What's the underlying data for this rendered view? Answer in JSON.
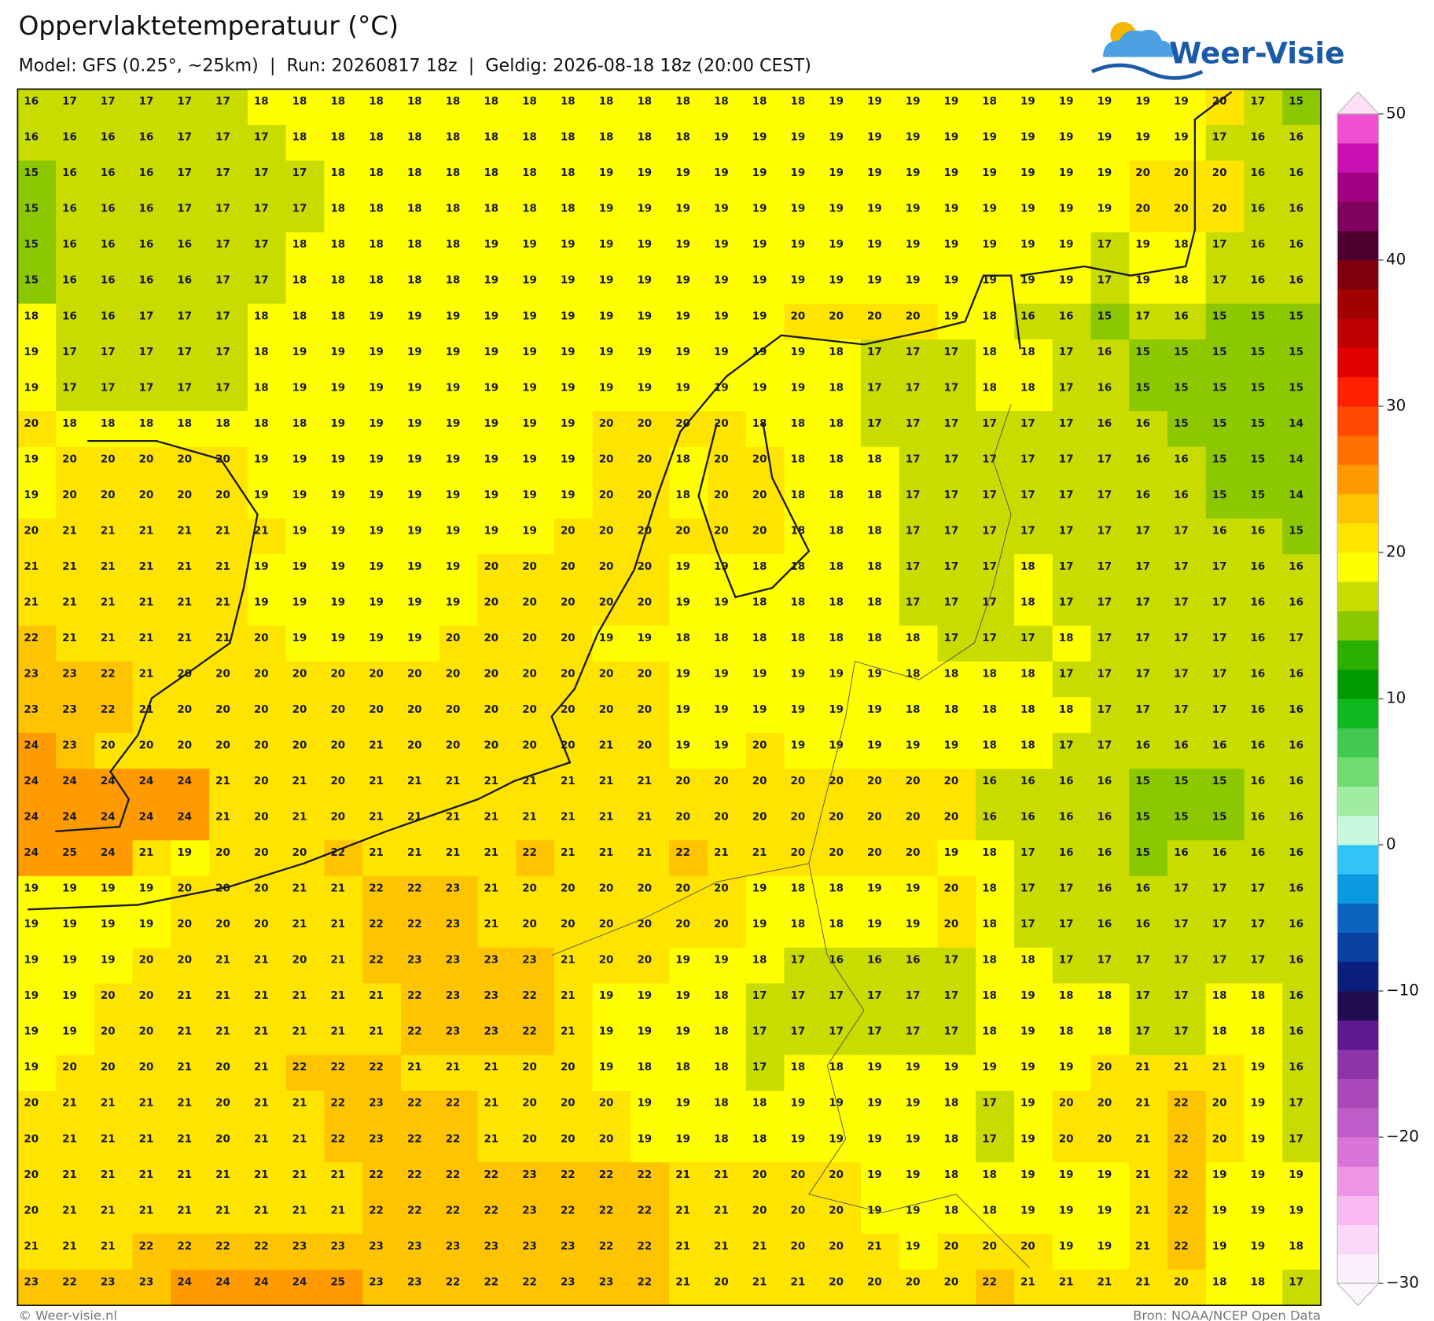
{
  "header": {
    "title": "Oppervlaktetemperatuur (°C)",
    "subtitle": "Model: GFS (0.25°, ~25km)  |  Run: 20260817 18z  |  Geldig: 2026-08-18 18z (20:00 CEST)",
    "logo": "Weer-Visie"
  },
  "map": {
    "type": "grid",
    "values": [
      [
        16,
        17,
        17,
        17,
        17,
        17,
        18,
        18,
        18,
        18,
        18,
        18,
        18,
        18,
        18,
        18,
        18,
        18,
        18,
        18,
        18,
        19,
        19,
        19,
        19,
        18,
        19,
        19,
        19,
        19,
        19,
        20,
        17,
        15
      ],
      [
        16,
        16,
        16,
        16,
        17,
        17,
        17,
        18,
        18,
        18,
        18,
        18,
        18,
        18,
        18,
        18,
        18,
        18,
        19,
        19,
        19,
        19,
        19,
        19,
        19,
        19,
        19,
        19,
        19,
        19,
        19,
        17,
        16,
        16
      ],
      [
        15,
        16,
        16,
        16,
        17,
        17,
        17,
        17,
        18,
        18,
        18,
        18,
        18,
        18,
        18,
        19,
        19,
        19,
        19,
        19,
        19,
        19,
        19,
        19,
        19,
        19,
        19,
        19,
        19,
        20,
        20,
        20,
        16,
        16
      ],
      [
        15,
        16,
        16,
        16,
        17,
        17,
        17,
        17,
        18,
        18,
        18,
        18,
        18,
        18,
        18,
        19,
        19,
        19,
        19,
        19,
        19,
        19,
        19,
        19,
        19,
        19,
        19,
        19,
        19,
        20,
        20,
        20,
        16,
        16
      ],
      [
        15,
        16,
        16,
        16,
        16,
        17,
        17,
        18,
        18,
        18,
        18,
        18,
        19,
        19,
        19,
        19,
        19,
        19,
        19,
        19,
        19,
        19,
        19,
        19,
        19,
        19,
        19,
        19,
        17,
        19,
        18,
        17,
        16,
        16
      ],
      [
        15,
        16,
        16,
        16,
        16,
        17,
        17,
        18,
        18,
        18,
        18,
        18,
        19,
        19,
        19,
        19,
        19,
        19,
        19,
        19,
        19,
        19,
        19,
        19,
        19,
        19,
        19,
        19,
        17,
        19,
        18,
        17,
        16,
        16
      ],
      [
        18,
        16,
        16,
        17,
        17,
        17,
        18,
        18,
        18,
        19,
        19,
        19,
        19,
        19,
        19,
        19,
        19,
        19,
        19,
        19,
        20,
        20,
        20,
        20,
        19,
        18,
        16,
        16,
        15,
        17,
        16,
        15,
        15,
        15
      ],
      [
        19,
        17,
        17,
        17,
        17,
        17,
        18,
        19,
        19,
        19,
        19,
        19,
        19,
        19,
        19,
        19,
        19,
        19,
        19,
        19,
        19,
        18,
        17,
        17,
        17,
        18,
        18,
        17,
        16,
        15,
        15,
        15,
        15,
        15
      ],
      [
        19,
        17,
        17,
        17,
        17,
        17,
        18,
        19,
        19,
        19,
        19,
        19,
        19,
        19,
        19,
        19,
        19,
        19,
        19,
        19,
        19,
        18,
        17,
        17,
        17,
        18,
        18,
        17,
        16,
        15,
        15,
        15,
        15,
        15
      ],
      [
        20,
        18,
        18,
        18,
        18,
        18,
        18,
        18,
        19,
        19,
        19,
        19,
        19,
        19,
        19,
        20,
        20,
        20,
        20,
        18,
        18,
        18,
        17,
        17,
        17,
        17,
        17,
        17,
        16,
        16,
        15,
        15,
        15,
        14
      ],
      [
        19,
        20,
        20,
        20,
        20,
        20,
        19,
        19,
        19,
        19,
        19,
        19,
        19,
        19,
        19,
        20,
        20,
        18,
        20,
        20,
        18,
        18,
        18,
        17,
        17,
        17,
        17,
        17,
        17,
        16,
        16,
        15,
        15,
        14
      ],
      [
        19,
        20,
        20,
        20,
        20,
        20,
        19,
        19,
        19,
        19,
        19,
        19,
        19,
        19,
        19,
        20,
        20,
        18,
        20,
        20,
        18,
        18,
        18,
        17,
        17,
        17,
        17,
        17,
        17,
        16,
        16,
        15,
        15,
        14
      ],
      [
        20,
        21,
        21,
        21,
        21,
        21,
        21,
        19,
        19,
        19,
        19,
        19,
        19,
        19,
        20,
        20,
        20,
        20,
        20,
        20,
        18,
        18,
        18,
        17,
        17,
        17,
        17,
        17,
        17,
        17,
        17,
        16,
        16,
        15
      ],
      [
        21,
        21,
        21,
        21,
        21,
        21,
        19,
        19,
        19,
        19,
        19,
        19,
        20,
        20,
        20,
        20,
        20,
        19,
        19,
        18,
        18,
        18,
        18,
        17,
        17,
        17,
        18,
        17,
        17,
        17,
        17,
        17,
        16,
        16
      ],
      [
        21,
        21,
        21,
        21,
        21,
        21,
        19,
        19,
        19,
        19,
        19,
        19,
        20,
        20,
        20,
        20,
        20,
        19,
        19,
        18,
        18,
        18,
        18,
        17,
        17,
        17,
        18,
        17,
        17,
        17,
        17,
        17,
        16,
        16
      ],
      [
        22,
        21,
        21,
        21,
        21,
        21,
        20,
        19,
        19,
        19,
        19,
        20,
        20,
        20,
        20,
        19,
        19,
        18,
        18,
        18,
        18,
        18,
        18,
        18,
        17,
        17,
        17,
        18,
        17,
        17,
        17,
        17,
        16,
        17
      ],
      [
        23,
        23,
        22,
        21,
        20,
        20,
        20,
        20,
        20,
        20,
        20,
        20,
        20,
        20,
        20,
        20,
        20,
        19,
        19,
        19,
        19,
        19,
        19,
        18,
        18,
        18,
        18,
        17,
        17,
        17,
        17,
        17,
        16,
        16
      ],
      [
        23,
        23,
        22,
        21,
        20,
        20,
        20,
        20,
        20,
        20,
        20,
        20,
        20,
        20,
        20,
        20,
        20,
        19,
        19,
        19,
        19,
        19,
        19,
        18,
        18,
        18,
        18,
        18,
        17,
        17,
        17,
        17,
        16,
        16
      ],
      [
        24,
        23,
        20,
        20,
        20,
        20,
        20,
        20,
        20,
        21,
        20,
        20,
        20,
        20,
        20,
        21,
        20,
        19,
        19,
        20,
        19,
        19,
        19,
        19,
        19,
        18,
        18,
        17,
        17,
        16,
        16,
        16,
        16,
        16
      ],
      [
        24,
        24,
        24,
        24,
        24,
        21,
        20,
        21,
        20,
        21,
        21,
        21,
        21,
        21,
        21,
        21,
        21,
        20,
        20,
        20,
        20,
        20,
        20,
        20,
        20,
        16,
        16,
        16,
        16,
        15,
        15,
        15,
        16,
        16
      ],
      [
        24,
        24,
        24,
        24,
        24,
        21,
        20,
        21,
        20,
        21,
        21,
        21,
        21,
        21,
        21,
        21,
        21,
        20,
        20,
        20,
        20,
        20,
        20,
        20,
        20,
        16,
        16,
        16,
        16,
        15,
        15,
        15,
        16,
        16
      ],
      [
        24,
        25,
        24,
        21,
        19,
        20,
        20,
        20,
        22,
        21,
        21,
        21,
        21,
        22,
        21,
        21,
        21,
        22,
        21,
        21,
        20,
        20,
        20,
        20,
        19,
        18,
        17,
        16,
        16,
        15,
        16,
        16,
        16,
        16
      ],
      [
        19,
        19,
        19,
        19,
        20,
        20,
        20,
        21,
        21,
        22,
        22,
        23,
        21,
        20,
        20,
        20,
        20,
        20,
        20,
        19,
        18,
        18,
        19,
        19,
        20,
        18,
        17,
        17,
        16,
        16,
        17,
        17,
        17,
        16
      ],
      [
        19,
        19,
        19,
        19,
        20,
        20,
        20,
        21,
        21,
        22,
        22,
        23,
        21,
        20,
        20,
        20,
        20,
        20,
        20,
        19,
        18,
        18,
        19,
        19,
        20,
        18,
        17,
        17,
        16,
        16,
        17,
        17,
        17,
        16
      ],
      [
        19,
        19,
        19,
        20,
        20,
        21,
        21,
        20,
        21,
        22,
        23,
        23,
        23,
        23,
        21,
        20,
        20,
        19,
        19,
        18,
        17,
        16,
        16,
        16,
        17,
        18,
        18,
        17,
        17,
        17,
        17,
        17,
        17,
        16
      ],
      [
        19,
        19,
        20,
        20,
        21,
        21,
        21,
        21,
        21,
        21,
        22,
        23,
        23,
        22,
        21,
        19,
        19,
        19,
        18,
        17,
        17,
        17,
        17,
        17,
        17,
        18,
        19,
        18,
        18,
        17,
        17,
        18,
        18,
        16
      ],
      [
        19,
        19,
        20,
        20,
        21,
        21,
        21,
        21,
        21,
        21,
        22,
        23,
        23,
        22,
        21,
        19,
        19,
        19,
        18,
        17,
        17,
        17,
        17,
        17,
        17,
        18,
        19,
        18,
        18,
        17,
        17,
        18,
        18,
        16
      ],
      [
        19,
        20,
        20,
        20,
        21,
        20,
        21,
        22,
        22,
        22,
        21,
        21,
        21,
        20,
        20,
        19,
        18,
        18,
        18,
        17,
        18,
        18,
        19,
        19,
        19,
        19,
        19,
        19,
        20,
        21,
        21,
        21,
        19,
        16
      ],
      [
        20,
        21,
        21,
        21,
        21,
        20,
        21,
        21,
        22,
        23,
        22,
        22,
        21,
        20,
        20,
        20,
        19,
        19,
        18,
        18,
        19,
        19,
        19,
        19,
        18,
        17,
        19,
        20,
        20,
        21,
        22,
        20,
        19,
        17
      ],
      [
        20,
        21,
        21,
        21,
        21,
        20,
        21,
        21,
        22,
        23,
        22,
        22,
        21,
        20,
        20,
        20,
        19,
        19,
        18,
        18,
        19,
        19,
        19,
        19,
        18,
        17,
        19,
        20,
        20,
        21,
        22,
        20,
        19,
        17
      ],
      [
        20,
        21,
        21,
        21,
        21,
        21,
        21,
        21,
        21,
        22,
        22,
        22,
        22,
        23,
        22,
        22,
        22,
        21,
        21,
        20,
        20,
        20,
        19,
        19,
        18,
        18,
        19,
        19,
        19,
        21,
        22,
        19,
        19,
        19
      ],
      [
        20,
        21,
        21,
        21,
        21,
        21,
        21,
        21,
        21,
        22,
        22,
        22,
        22,
        23,
        22,
        22,
        22,
        21,
        21,
        20,
        20,
        20,
        19,
        19,
        18,
        18,
        19,
        19,
        19,
        21,
        22,
        19,
        19,
        19
      ],
      [
        21,
        21,
        21,
        22,
        22,
        22,
        22,
        23,
        23,
        23,
        23,
        23,
        23,
        23,
        23,
        22,
        22,
        21,
        21,
        21,
        20,
        20,
        21,
        19,
        20,
        20,
        20,
        19,
        19,
        21,
        22,
        19,
        19,
        18
      ],
      [
        23,
        22,
        23,
        23,
        24,
        24,
        24,
        24,
        25,
        23,
        23,
        22,
        22,
        22,
        23,
        23,
        22,
        21,
        20,
        21,
        21,
        20,
        20,
        20,
        20,
        22,
        21,
        21,
        21,
        21,
        20,
        18,
        18,
        17
      ]
    ]
  },
  "colorbar": {
    "lim": [
      -30,
      50
    ],
    "ticks": [
      50,
      40,
      30,
      20,
      10,
      0,
      {
        "value": -10,
        "label": "−10"
      },
      {
        "value": -20,
        "label": "−20"
      },
      {
        "value": -30,
        "label": "−30"
      }
    ],
    "colors": [
      "#fdf0fd",
      "#fcd8f8",
      "#f8b8f0",
      "#ec94e6",
      "#d874d8",
      "#c05cc8",
      "#a848b8",
      "#8c34a8",
      "#601890",
      "#200c50",
      "#0a1e7a",
      "#0a40a0",
      "#0a64c0",
      "#0a9ae0",
      "#30c4f8",
      "#c8f8e0",
      "#a0eca0",
      "#70dc70",
      "#40c850",
      "#10b820",
      "#009a00",
      "#2cb000",
      "#8cc800",
      "#c8dc00",
      "#ffff00",
      "#ffe400",
      "#ffc400",
      "#ff9a00",
      "#ff7000",
      "#ff4800",
      "#ff2000",
      "#e00000",
      "#c00000",
      "#a00000",
      "#800010",
      "#500030",
      "#800060",
      "#a00080",
      "#c810b0",
      "#f050d0"
    ]
  },
  "footer": {
    "credit": "© Weer-visie.nl",
    "source": "Bron: NOAA/NCEP Open Data"
  }
}
